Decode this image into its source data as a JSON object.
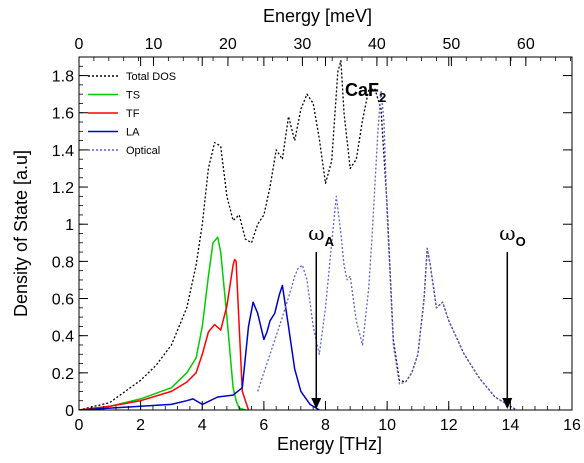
{
  "chart_data": {
    "type": "line",
    "title": "",
    "xlabel": "Energy [THz]",
    "ylabel": "Density of State [a.u]",
    "x2label": "Energy [meV]",
    "xlim": [
      0,
      16
    ],
    "ylim": [
      0,
      1.9
    ],
    "x2lim": [
      0,
      66.2
    ],
    "x_ticks": [
      "0",
      "2",
      "4",
      "6",
      "8",
      "10",
      "12",
      "14",
      "16"
    ],
    "y_ticks": [
      "0",
      "0.2",
      "0.4",
      "0.6",
      "0.8",
      "1",
      "1.2",
      "1.4",
      "1.6",
      "1.8"
    ],
    "x2_ticks": [
      "0",
      "10",
      "20",
      "30",
      "40",
      "50",
      "60"
    ],
    "grid": false,
    "legend_position": "top-left",
    "annotations": {
      "compound": "CaF",
      "compound_sub": "2",
      "omega_a_symbol": "ω",
      "omega_a_sub": "A",
      "omega_a_x": 7.7,
      "omega_o_symbol": "ω",
      "omega_o_sub": "O",
      "omega_o_x": 13.9
    },
    "series": [
      {
        "name": "Total DOS",
        "color": "#000000",
        "dash": "dotted",
        "x": [
          0,
          0.5,
          1.0,
          1.5,
          2.0,
          2.5,
          3.0,
          3.5,
          3.8,
          4.0,
          4.2,
          4.4,
          4.6,
          4.8,
          5.0,
          5.2,
          5.4,
          5.6,
          5.8,
          6.0,
          6.2,
          6.4,
          6.6,
          6.8,
          7.0,
          7.2,
          7.4,
          7.6,
          7.8,
          8.0,
          8.2,
          8.4,
          8.5,
          8.6,
          8.8,
          9.0,
          9.2,
          9.4,
          9.6,
          9.8,
          10.0,
          10.2,
          10.4,
          10.6,
          10.8,
          11.0,
          11.2,
          11.3,
          11.4,
          11.6,
          11.8,
          12.0,
          12.5,
          13.0,
          13.5,
          14.0,
          14.2
        ],
        "y": [
          0,
          0.02,
          0.04,
          0.1,
          0.16,
          0.24,
          0.35,
          0.55,
          0.78,
          1.0,
          1.3,
          1.44,
          1.42,
          1.15,
          1.02,
          1.05,
          0.92,
          0.9,
          1.0,
          1.05,
          1.2,
          1.4,
          1.35,
          1.58,
          1.45,
          1.62,
          1.7,
          1.65,
          1.46,
          1.22,
          1.34,
          1.82,
          1.88,
          1.6,
          1.3,
          1.35,
          1.56,
          1.72,
          1.73,
          1.62,
          1.1,
          0.38,
          0.16,
          0.15,
          0.2,
          0.3,
          0.6,
          0.87,
          0.78,
          0.55,
          0.58,
          0.48,
          0.3,
          0.17,
          0.07,
          0.02,
          0
        ]
      },
      {
        "name": "TS",
        "color": "#00cc00",
        "dash": "solid",
        "x": [
          0,
          1.0,
          2.0,
          3.0,
          3.5,
          3.8,
          4.0,
          4.2,
          4.35,
          4.5,
          4.6,
          4.8,
          5.0,
          5.1,
          5.2,
          5.4
        ],
        "y": [
          0,
          0.02,
          0.06,
          0.12,
          0.2,
          0.28,
          0.45,
          0.72,
          0.9,
          0.93,
          0.85,
          0.5,
          0.12,
          0.05,
          0.01,
          0
        ]
      },
      {
        "name": "TF",
        "color": "#ff0000",
        "dash": "solid",
        "x": [
          0,
          1.0,
          2.0,
          3.0,
          3.5,
          3.8,
          4.0,
          4.2,
          4.4,
          4.6,
          4.8,
          4.9,
          5.0,
          5.05,
          5.1,
          5.2,
          5.3,
          5.5
        ],
        "y": [
          0,
          0.02,
          0.05,
          0.1,
          0.15,
          0.2,
          0.3,
          0.42,
          0.46,
          0.43,
          0.56,
          0.67,
          0.78,
          0.81,
          0.8,
          0.45,
          0.1,
          0
        ]
      },
      {
        "name": "LA",
        "color": "#0000cc",
        "dash": "solid",
        "x": [
          0,
          1.0,
          2.0,
          3.0,
          3.5,
          3.7,
          4.0,
          4.5,
          5.0,
          5.3,
          5.5,
          5.65,
          5.8,
          6.0,
          6.1,
          6.2,
          6.35,
          6.5,
          6.6,
          6.8,
          7.0,
          7.2,
          7.5,
          7.8
        ],
        "y": [
          0,
          0.01,
          0.02,
          0.03,
          0.05,
          0.06,
          0.03,
          0.07,
          0.08,
          0.12,
          0.45,
          0.58,
          0.52,
          0.38,
          0.42,
          0.48,
          0.52,
          0.62,
          0.67,
          0.45,
          0.22,
          0.1,
          0.03,
          0
        ]
      },
      {
        "name": "Optical",
        "color": "#5b62d6",
        "dash": "dotted",
        "x": [
          5.8,
          6.2,
          6.6,
          6.9,
          7.0,
          7.1,
          7.25,
          7.4,
          7.6,
          7.8,
          8.0,
          8.2,
          8.35,
          8.5,
          8.6,
          8.7,
          8.8,
          9.0,
          9.2,
          9.4,
          9.5,
          9.6,
          9.7,
          9.8,
          9.9,
          10.0,
          10.2,
          10.4,
          10.6,
          10.8,
          11.0,
          11.2,
          11.3,
          11.4,
          11.6,
          11.8,
          12.0,
          12.5,
          13.0,
          13.5,
          14.0,
          14.2
        ],
        "y": [
          0.1,
          0.3,
          0.5,
          0.66,
          0.72,
          0.76,
          0.78,
          0.7,
          0.45,
          0.3,
          0.55,
          0.9,
          1.15,
          0.95,
          0.78,
          0.7,
          0.72,
          0.48,
          0.35,
          0.65,
          0.9,
          1.2,
          1.5,
          1.72,
          1.55,
          1.05,
          0.35,
          0.14,
          0.15,
          0.2,
          0.3,
          0.6,
          0.87,
          0.78,
          0.55,
          0.58,
          0.48,
          0.3,
          0.17,
          0.07,
          0.02,
          0
        ]
      }
    ]
  }
}
